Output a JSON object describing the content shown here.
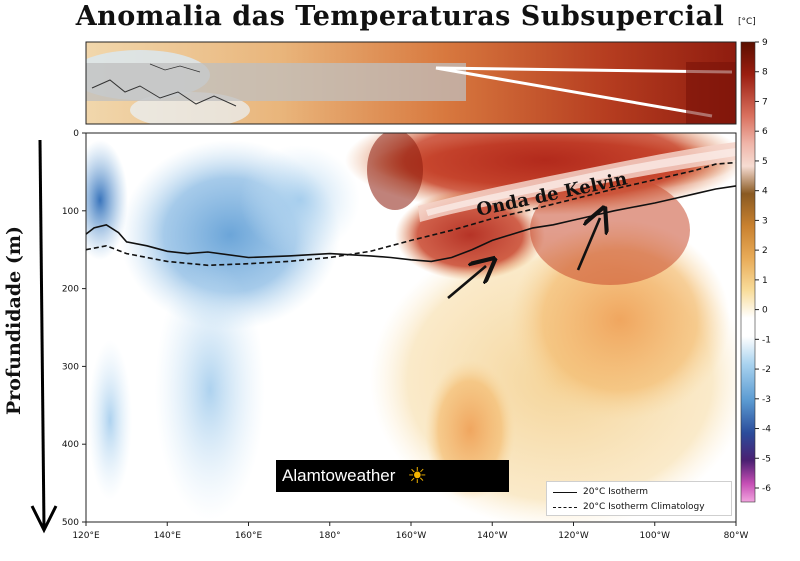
{
  "title": "Anomalia das Temperaturas Subsupercial",
  "annotation": "Onda de Kelvin",
  "watermark": {
    "text": "Alamtoweather",
    "icon": "sun-icon"
  },
  "chart_data": {
    "type": "heatmap",
    "title": "Anomalia das Temperaturas Subsupercial",
    "xlabel": "",
    "ylabel": "Profundidade (m)",
    "x_ticks": [
      "120°E",
      "140°E",
      "160°E",
      "180°",
      "160°W",
      "140°W",
      "120°W",
      "100°W",
      "80°W"
    ],
    "y_ticks": [
      "0",
      "100",
      "200",
      "300",
      "400",
      "500"
    ],
    "ylim": [
      500,
      0
    ],
    "colorbar": {
      "unit": "[°C]",
      "ticks": [
        "9",
        "8",
        "7",
        "6",
        "5",
        "4",
        "3",
        "2",
        "1",
        "0",
        "-1",
        "-2",
        "-3",
        "-4",
        "-5",
        "-6"
      ],
      "range": [
        -6,
        9
      ]
    },
    "series": [
      {
        "name": "20°C Isotherm",
        "style": "solid",
        "x_lon_east": [
          120,
          122,
          125,
          128,
          130,
          135,
          140,
          145,
          150,
          160,
          170,
          180,
          190,
          195,
          200,
          205,
          210,
          215,
          220,
          225,
          230,
          235,
          240,
          245,
          250,
          255,
          260,
          265,
          270,
          275,
          280
        ],
        "y_depth": [
          130,
          122,
          118,
          128,
          140,
          145,
          152,
          155,
          153,
          160,
          158,
          155,
          158,
          160,
          163,
          165,
          160,
          150,
          138,
          130,
          122,
          118,
          112,
          106,
          100,
          95,
          90,
          84,
          78,
          72,
          68
        ]
      },
      {
        "name": "20°C Isotherm Climatology",
        "style": "dashed",
        "x_lon_east": [
          120,
          125,
          130,
          140,
          150,
          160,
          170,
          180,
          190,
          200,
          210,
          220,
          230,
          240,
          250,
          260,
          270,
          275,
          280
        ],
        "y_depth": [
          150,
          145,
          155,
          165,
          170,
          168,
          165,
          160,
          152,
          138,
          125,
          110,
          98,
          85,
          72,
          60,
          48,
          40,
          38
        ]
      }
    ]
  }
}
